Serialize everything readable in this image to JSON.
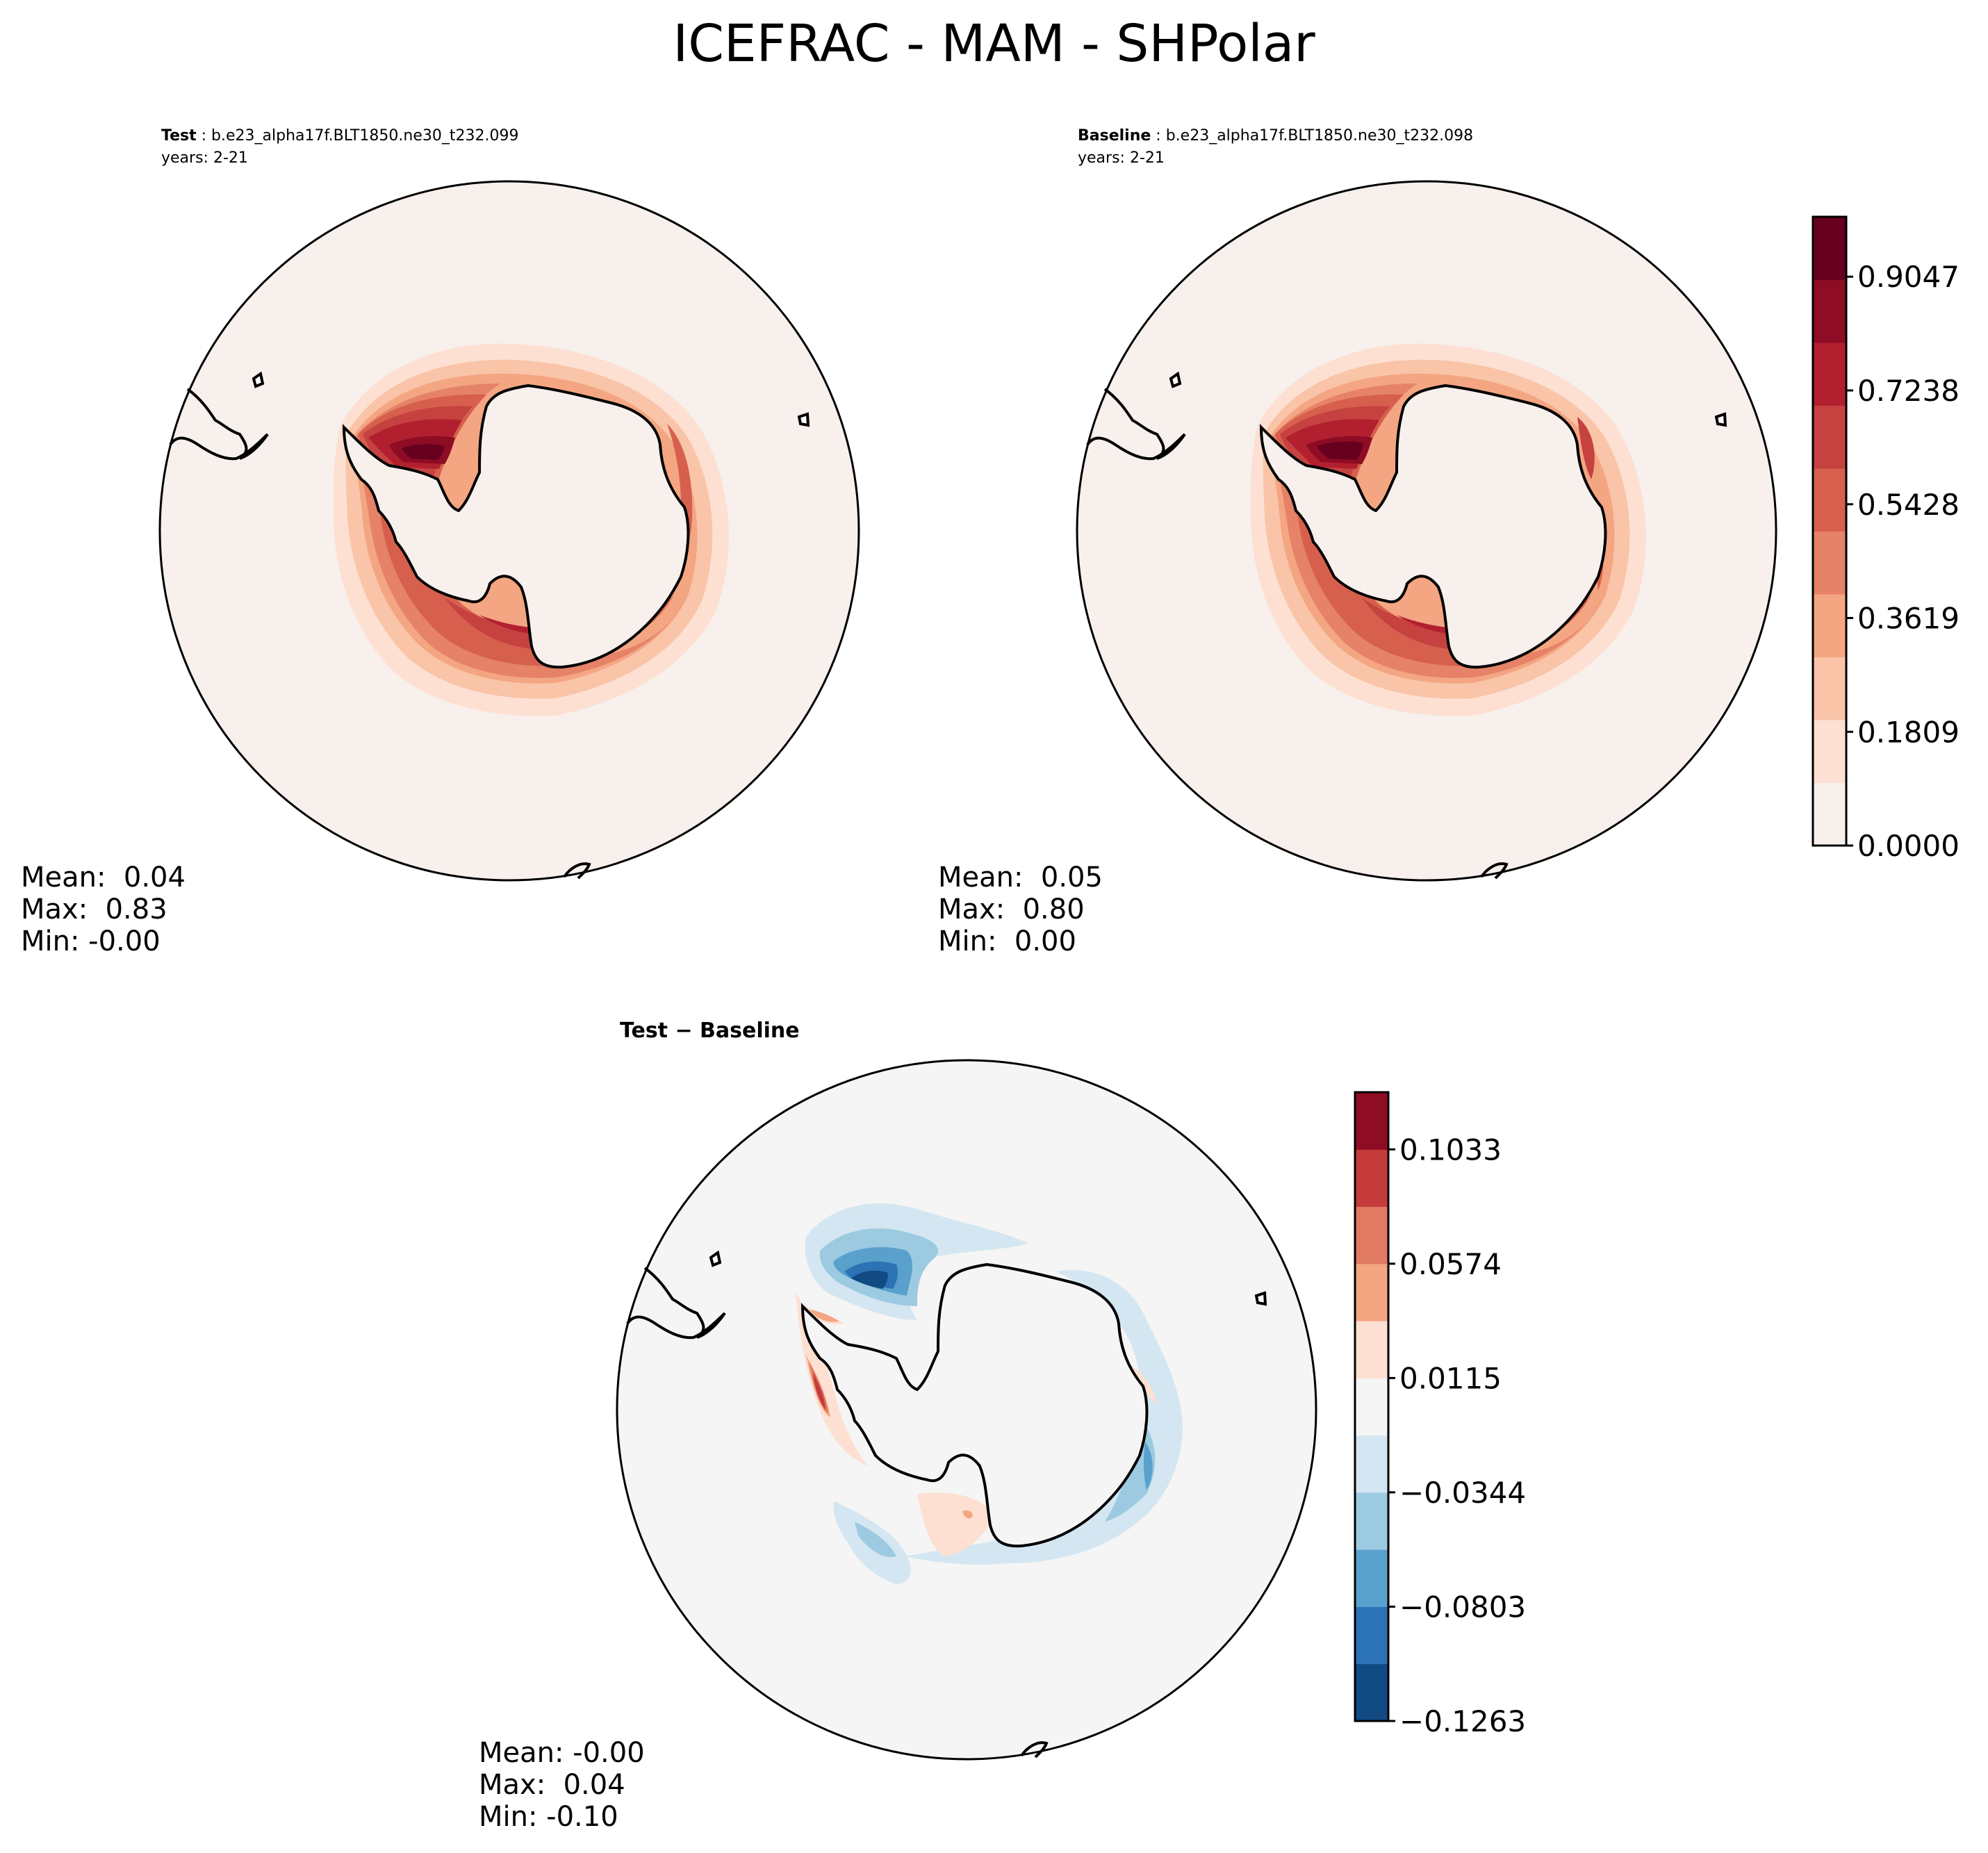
{
  "title": "ICEFRAC - MAM - SHPolar",
  "chart_data": [
    {
      "type": "heatmap",
      "panel": "test",
      "label": "Test",
      "case": "b.e23_alpha17f.BLT1850.ne30_t232.099",
      "years": "years: 2-21",
      "stats": {
        "mean": "Mean:  0.04",
        "max": "Max:  0.83",
        "min": "Min: -0.00"
      },
      "colormap": "RdBu_r (positive half)",
      "colorbar_levels": [
        0.0,
        0.1809,
        0.3619,
        0.5428,
        0.7238,
        0.9047
      ],
      "colorbar_range": [
        0.0,
        1.0
      ]
    },
    {
      "type": "heatmap",
      "panel": "baseline",
      "label": "Baseline",
      "case": "b.e23_alpha17f.BLT1850.ne30_t232.098",
      "years": "years: 2-21",
      "stats": {
        "mean": "Mean:  0.05",
        "max": "Max:  0.80",
        "min": "Min:  0.00"
      },
      "colorbar_ticks": [
        "0.0000",
        "0.1809",
        "0.3619",
        "0.5428",
        "0.7238",
        "0.9047"
      ],
      "colors": [
        "#f7f0ec",
        "#fde0d2",
        "#f9c4a8",
        "#f4a582",
        "#e58267",
        "#d6604d",
        "#c54240",
        "#b2202f",
        "#8e0c24",
        "#67001f"
      ]
    },
    {
      "type": "heatmap",
      "panel": "difference",
      "label": "Test − Baseline",
      "stats": {
        "mean": "Mean: -0.00",
        "max": "Max:  0.04",
        "min": "Min: -0.10"
      },
      "colorbar_ticks": [
        "−0.1263",
        "−0.0803",
        "−0.0344",
        "0.0115",
        "0.0574",
        "0.1033"
      ],
      "colorbar_values": [
        -0.1263,
        -0.0803,
        -0.0344,
        0.0115,
        0.0574,
        0.1033
      ],
      "colors": [
        "#124a84",
        "#2c73b5",
        "#5aa0cd",
        "#9ccae1",
        "#d4e6f1",
        "#f5f5f5",
        "#fde0d2",
        "#f4a582",
        "#e07a62",
        "#c53a3a",
        "#8e0c24"
      ]
    }
  ]
}
